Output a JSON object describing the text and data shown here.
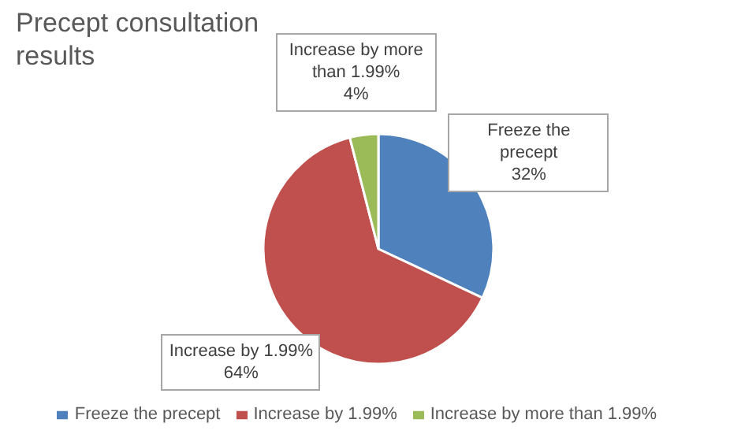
{
  "chart_data": {
    "type": "pie",
    "title": "Precept consultation results",
    "categories": [
      "Freeze the precept",
      "Increase by 1.99%",
      "Increase by more than 1.99%"
    ],
    "values": [
      32,
      64,
      4
    ],
    "colors": [
      "#4f81bd",
      "#c0504d",
      "#9bbb59"
    ],
    "value_labels": [
      "32%",
      "64%",
      "4%"
    ],
    "legend": "bottom"
  }
}
